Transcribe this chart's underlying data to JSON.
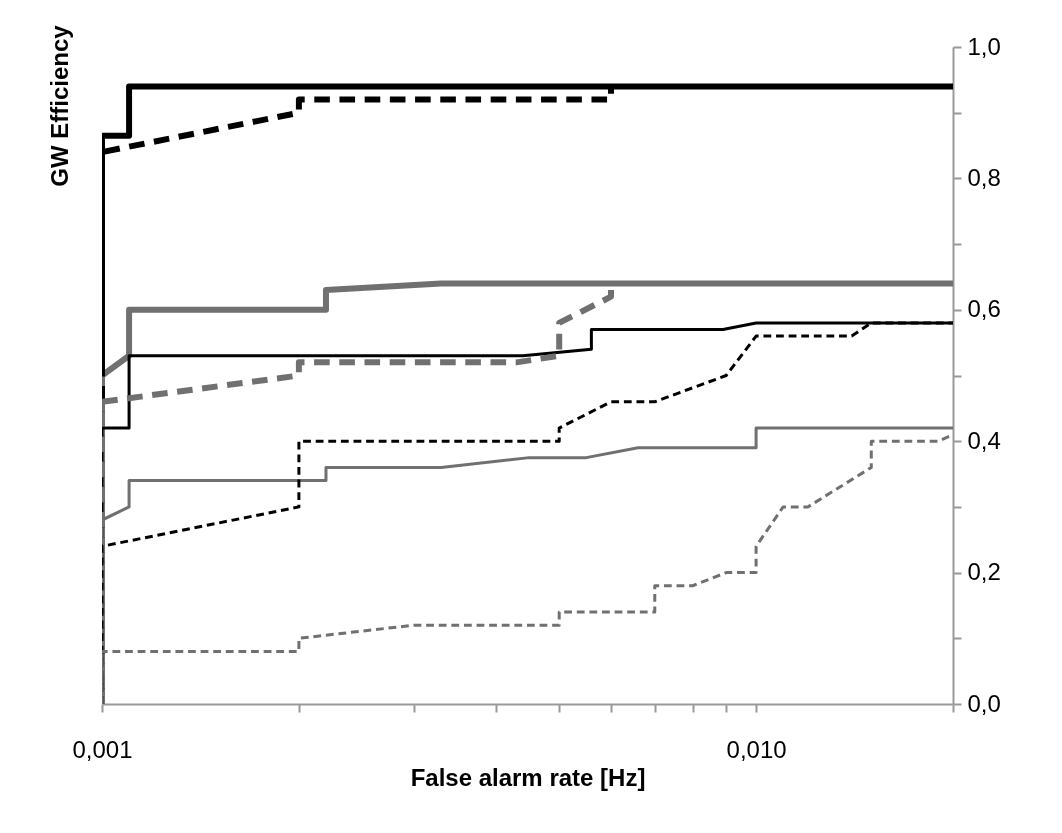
{
  "chart_data": {
    "type": "line",
    "xlabel": "False alarm rate [Hz]",
    "ylabel": "GW Efficiency",
    "log": "x",
    "xlim": [
      0.001,
      0.02
    ],
    "ylim": [
      0,
      1
    ],
    "xticks": [
      {
        "value": 0.001,
        "label": "0,001"
      },
      {
        "value": 0.002,
        "label": null
      },
      {
        "value": 0.003,
        "label": null
      },
      {
        "value": 0.004,
        "label": null
      },
      {
        "value": 0.005,
        "label": null
      },
      {
        "value": 0.006,
        "label": null
      },
      {
        "value": 0.007,
        "label": null
      },
      {
        "value": 0.008,
        "label": null
      },
      {
        "value": 0.009,
        "label": null
      },
      {
        "value": 0.01,
        "label": "0,010"
      },
      {
        "value": 0.02,
        "label": null
      }
    ],
    "yticks": [
      {
        "value": 0,
        "label": "0,0"
      },
      {
        "value": 0.1,
        "label": null
      },
      {
        "value": 0.2,
        "label": "0,2"
      },
      {
        "value": 0.3,
        "label": null
      },
      {
        "value": 0.4,
        "label": "0,4"
      },
      {
        "value": 0.5,
        "label": null
      },
      {
        "value": 0.6,
        "label": "0,6"
      },
      {
        "value": 0.7,
        "label": null
      },
      {
        "value": 0.8,
        "label": "0,8"
      },
      {
        "value": 0.9,
        "label": null
      },
      {
        "value": 1,
        "label": "1,0"
      }
    ],
    "marker": "none",
    "series": [
      {
        "color": "#000000",
        "line_style": "solid",
        "x": [
          0.001,
          0.001,
          0.0011,
          0.0011,
          0.02
        ],
        "values": [
          0,
          0.865,
          0.865,
          0.94,
          0.94
        ]
      },
      {
        "color": "#000000",
        "line_style": "dashed",
        "x": [
          0.001,
          0.001,
          0.002,
          0.002,
          0.006,
          0.006
        ],
        "values": [
          0,
          0.84,
          0.9,
          0.92,
          0.92,
          0.94
        ]
      },
      {
        "color": "#707070",
        "line_style": "solid",
        "x": [
          0.001,
          0.001,
          0.0011,
          0.0011,
          0.0022,
          0.0022,
          0.0033,
          0.02
        ],
        "values": [
          0,
          0.5,
          0.53,
          0.6,
          0.6,
          0.63,
          0.64,
          0.64
        ]
      },
      {
        "color": "#707070",
        "line_style": "dashed",
        "x": [
          0.001,
          0.001,
          0.002,
          0.002,
          0.0043,
          0.005,
          0.005,
          0.006,
          0.006
        ],
        "values": [
          0,
          0.46,
          0.5,
          0.52,
          0.52,
          0.53,
          0.58,
          0.62,
          0.64
        ]
      },
      {
        "color": "#000000",
        "line_style": "solid",
        "x": [
          0.001,
          0.001,
          0.0011,
          0.0011,
          0.0044,
          0.0056,
          0.0056,
          0.0089,
          0.01,
          0.02
        ],
        "values": [
          0,
          0.42,
          0.42,
          0.53,
          0.53,
          0.54,
          0.57,
          0.57,
          0.58,
          0.58
        ]
      },
      {
        "color": "#000000",
        "line_style": "dashed",
        "x": [
          0.001,
          0.001,
          0.002,
          0.002,
          0.005,
          0.005,
          0.006,
          0.007,
          0.009,
          0.01,
          0.014,
          0.015,
          0.02
        ],
        "values": [
          0,
          0.24,
          0.3,
          0.4,
          0.4,
          0.42,
          0.46,
          0.46,
          0.5,
          0.56,
          0.56,
          0.58,
          0.58
        ]
      },
      {
        "color": "#707070",
        "line_style": "solid",
        "x": [
          0.001,
          0.001,
          0.0011,
          0.0011,
          0.0022,
          0.0022,
          0.0033,
          0.0045,
          0.0055,
          0.0066,
          0.01,
          0.01,
          0.02
        ],
        "values": [
          0,
          0.28,
          0.3,
          0.34,
          0.34,
          0.36,
          0.36,
          0.375,
          0.375,
          0.39,
          0.39,
          0.42,
          0.42
        ]
      },
      {
        "color": "#707070",
        "line_style": "dashed",
        "x": [
          0.001,
          0.001,
          0.002,
          0.002,
          0.003,
          0.005,
          0.005,
          0.007,
          0.007,
          0.008,
          0.009,
          0.01,
          0.01,
          0.011,
          0.012,
          0.015,
          0.015,
          0.019,
          0.02
        ],
        "values": [
          0,
          0.08,
          0.08,
          0.1,
          0.12,
          0.12,
          0.14,
          0.14,
          0.18,
          0.18,
          0.2,
          0.2,
          0.24,
          0.3,
          0.3,
          0.36,
          0.4,
          0.4,
          0.41
        ]
      }
    ]
  }
}
